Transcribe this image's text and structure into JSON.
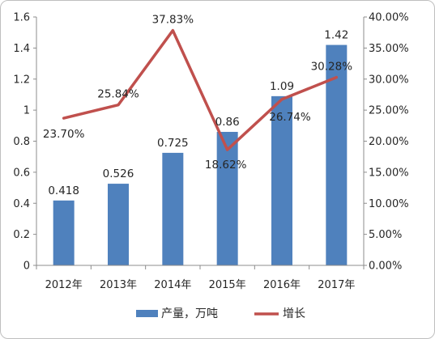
{
  "chart_data": {
    "type": "bar",
    "categories": [
      "2012年",
      "2013年",
      "2014年",
      "2015年",
      "2016年",
      "2017年"
    ],
    "series": [
      {
        "name": "产量，万吨",
        "type": "bar",
        "axis": "left",
        "values": [
          0.418,
          0.526,
          0.725,
          0.86,
          1.09,
          1.42
        ],
        "labels": [
          "0.418",
          "0.526",
          "0.725",
          "0.86",
          "1.09",
          "1.42"
        ],
        "color": "#4f81bd"
      },
      {
        "name": "增长",
        "type": "line",
        "axis": "right",
        "values": [
          23.7,
          25.84,
          37.83,
          18.62,
          26.74,
          30.28
        ],
        "labels": [
          "23.70%",
          "25.84%",
          "37.83%",
          "18.62%",
          "26.74%",
          "30.28%"
        ],
        "color": "#c0504d"
      }
    ],
    "y_left": {
      "ylim": [
        0,
        1.6
      ],
      "ticks": [
        "0",
        "0.2",
        "0.4",
        "0.6",
        "0.8",
        "1",
        "1.2",
        "1.4",
        "1.6"
      ]
    },
    "y_right": {
      "ylim": [
        0,
        40
      ],
      "unit": "%",
      "ticks": [
        "0.00%",
        "5.00%",
        "10.00%",
        "15.00%",
        "20.00%",
        "25.00%",
        "30.00%",
        "35.00%",
        "40.00%"
      ]
    },
    "legend_position": "bottom",
    "grid": false
  }
}
